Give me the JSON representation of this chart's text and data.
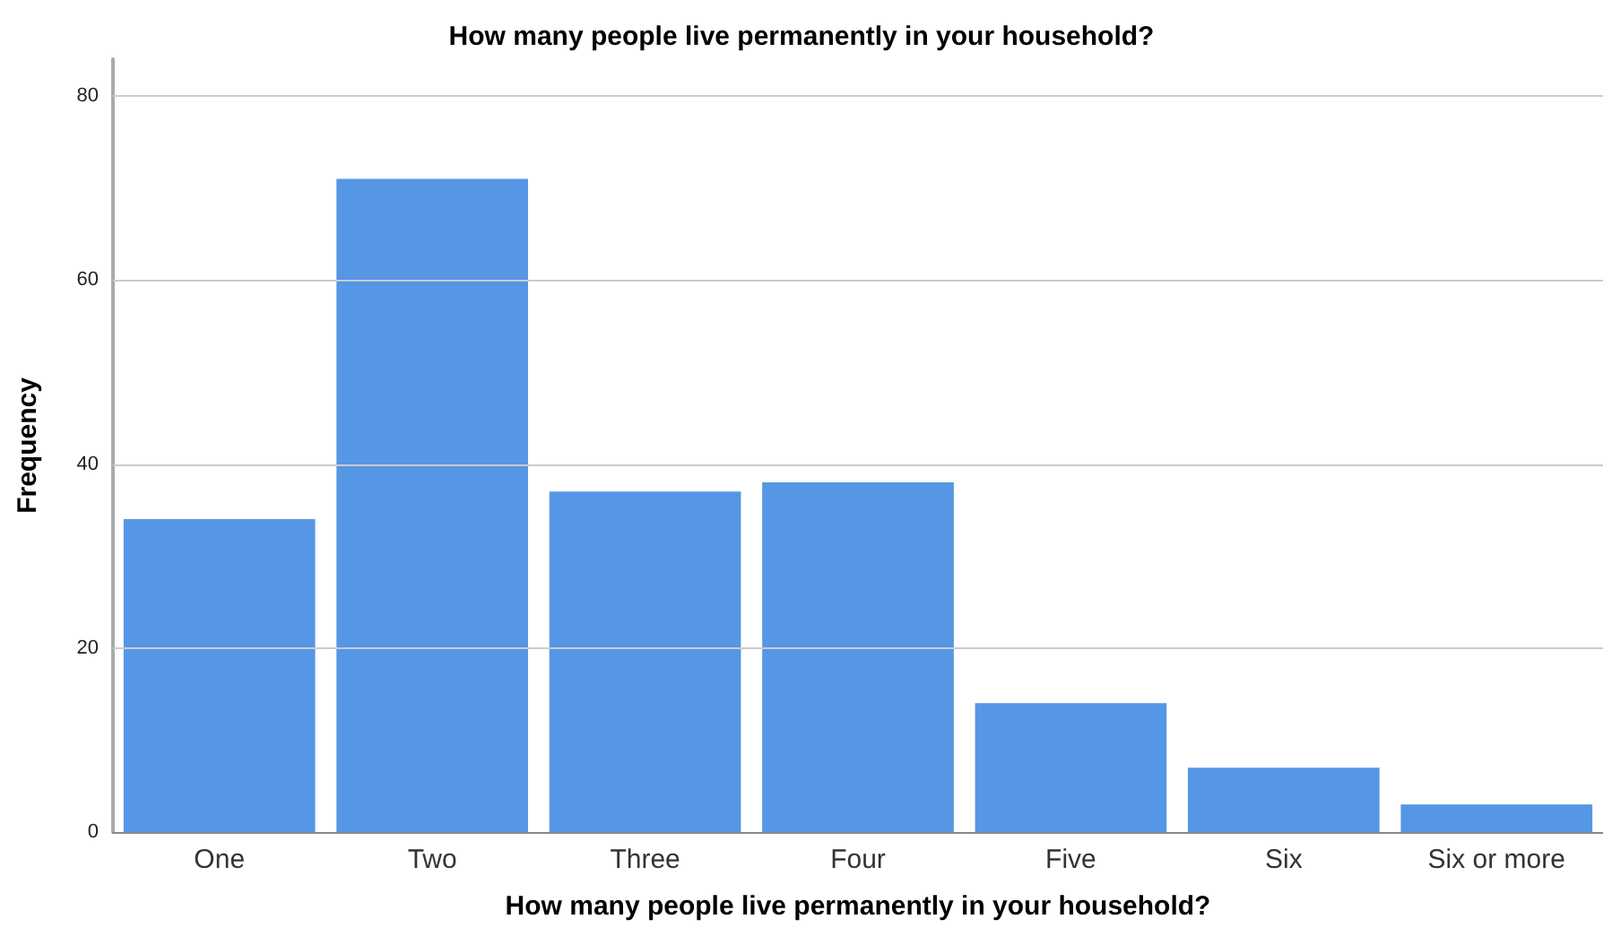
{
  "chart_data": {
    "type": "bar",
    "title": "How many people live permanently in your household?",
    "xlabel": "How many people live permanently in your household?",
    "ylabel": "Frequency",
    "categories": [
      "One",
      "Two",
      "Three",
      "Four",
      "Five",
      "Six",
      "Six or more"
    ],
    "values": [
      34,
      71,
      37,
      38,
      14,
      7,
      3
    ],
    "color": "#5596e5",
    "ylim": [
      0,
      84
    ],
    "yticks": [
      0,
      20,
      40,
      60,
      80
    ],
    "grid": "y"
  }
}
